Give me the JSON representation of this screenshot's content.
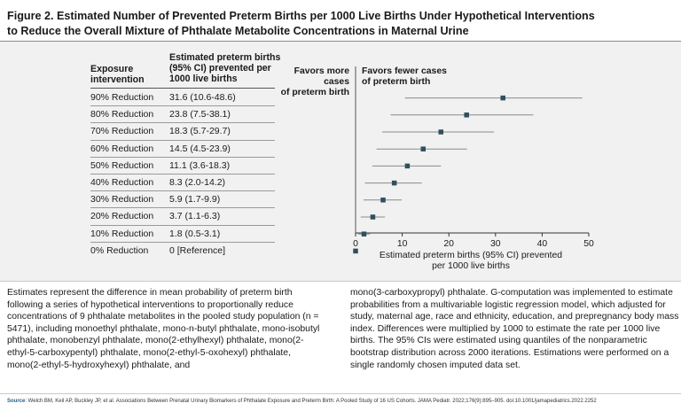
{
  "figure": {
    "title_line1": "Figure 2. Estimated Number of Prevented Preterm Births per 1000 Live Births Under Hypothetical Interventions",
    "title_line2": "to Reduce the Overall Mixture of Phthalate Metabolite Concentrations in Maternal Urine"
  },
  "table": {
    "col1_header_line1": "Exposure",
    "col1_header_line2": "intervention",
    "col2_header_line1": "Estimated preterm births",
    "col2_header_line2": "(95% CI) prevented per",
    "col2_header_line3": "1000 live births",
    "rows": [
      {
        "label": "90% Reduction",
        "ci": "31.6 (10.6-48.6)"
      },
      {
        "label": "80% Reduction",
        "ci": "23.8 (7.5-38.1)"
      },
      {
        "label": "70% Reduction",
        "ci": "18.3 (5.7-29.7)"
      },
      {
        "label": "60% Reduction",
        "ci": "14.5 (4.5-23.9)"
      },
      {
        "label": "50% Reduction",
        "ci": "11.1 (3.6-18.3)"
      },
      {
        "label": "40% Reduction",
        "ci": "8.3 (2.0-14.2)"
      },
      {
        "label": "30% Reduction",
        "ci": "5.9 (1.7-9.9)"
      },
      {
        "label": "20% Reduction",
        "ci": "3.7 (1.1-6.3)"
      },
      {
        "label": "10% Reduction",
        "ci": "1.8 (0.5-3.1)"
      },
      {
        "label": "0% Reduction",
        "ci": "0 [Reference]"
      }
    ]
  },
  "plot": {
    "favors_more_line1": "Favors more cases",
    "favors_more_line2": "of preterm birth",
    "favors_fewer_line1": "Favors fewer cases",
    "favors_fewer_line2": "of preterm birth",
    "xlabel_line1": "Estimated preterm births (95% CI) prevented",
    "xlabel_line2": "per 1000 live births"
  },
  "chart_data": {
    "type": "forest",
    "categories": [
      "90% Reduction",
      "80% Reduction",
      "70% Reduction",
      "60% Reduction",
      "50% Reduction",
      "40% Reduction",
      "30% Reduction",
      "20% Reduction",
      "10% Reduction",
      "0% Reduction"
    ],
    "estimates": [
      31.6,
      23.8,
      18.3,
      14.5,
      11.1,
      8.3,
      5.9,
      3.7,
      1.8,
      0
    ],
    "ci_low": [
      10.6,
      7.5,
      5.7,
      4.5,
      3.6,
      2.0,
      1.7,
      1.1,
      0.5,
      0
    ],
    "ci_high": [
      48.6,
      38.1,
      29.7,
      23.9,
      18.3,
      14.2,
      9.9,
      6.3,
      3.1,
      0
    ],
    "xlim": [
      0,
      50
    ],
    "xticks": [
      0,
      10,
      20,
      30,
      40,
      50
    ],
    "reference_line": 0,
    "xlabel": "Estimated preterm births (95% CI) prevented per 1000 live births",
    "marker_color": "#2f4f5f",
    "line_color": "#8a8a8a"
  },
  "caption": {
    "left": "Estimates represent the difference in mean probability of preterm birth following a series of hypothetical interventions to proportionally reduce concentrations of 9 phthalate metabolites in the pooled study population (n = 5471), including monoethyl phthalate, mono-n-butyl phthalate, mono-isobutyl phthalate, monobenzyl phthalate, mono(2-ethylhexyl) phthalate, mono(2-ethyl-5-carboxypentyl) phthalate, mono(2-ethyl-5-oxohexyl) phthalate, mono(2-ethyl-5-hydroxyhexyl) phthalate, and",
    "right": "mono(3-carboxypropyl) phthalate. G-computation was implemented to estimate probabilities from a multivariable logistic regression model, which adjusted for study, maternal age, race and ethnicity, education, and prepregnancy body mass index. Differences were multiplied by 1000 to estimate the rate per 1000 live births. The 95% CIs were estimated using quantiles of the nonparametric bootstrap distribution across 2000 iterations. Estimations were performed on a single randomly chosen imputed data set."
  },
  "source": {
    "tag": "Source",
    "text": ": Welch BM, Keil AP, Buckley JP, et al. Associations Between Prenatal Urinary Biomarkers of Phthalate Exposure and Preterm Birth: A Pooled Study of 16 US Cohorts. JAMA Pediatr. 2022;176(9):895–905. doi:10.1001/jamapediatrics.2022.2252"
  }
}
